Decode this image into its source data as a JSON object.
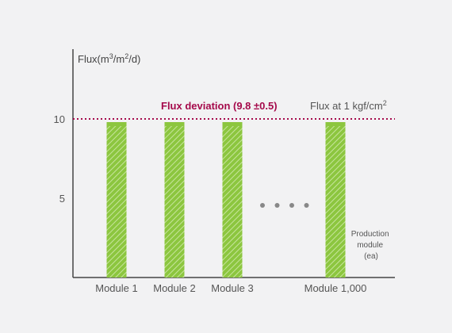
{
  "chart_data": {
    "type": "bar",
    "categories": [
      "Module 1",
      "Module 2",
      "Module 3",
      "Module 1,000"
    ],
    "values": [
      9.8,
      9.8,
      9.8,
      9.8
    ],
    "ylabel_base": "Flux(m",
    "ylabel_sup1": "3",
    "ylabel_mid": "/m",
    "ylabel_sup2": "2",
    "ylabel_end": "/d)",
    "yticks": [
      5,
      10
    ],
    "ylim": [
      0,
      16.5
    ],
    "reference_line": {
      "value": 10,
      "label": "Flux deviation (9.8 ±0.5)",
      "condition_base": "Flux at 1 kgf/cm",
      "condition_sup": "2"
    },
    "ellipsis_dots": 4,
    "xlabel_lines": [
      "Production",
      "module",
      "(ea)"
    ],
    "colors": {
      "bar_fill": "#8cc63f",
      "bar_hatch": "#c7e59d",
      "reference_line": "#a50a4b",
      "axis": "#444444",
      "dots": "#888888"
    }
  }
}
